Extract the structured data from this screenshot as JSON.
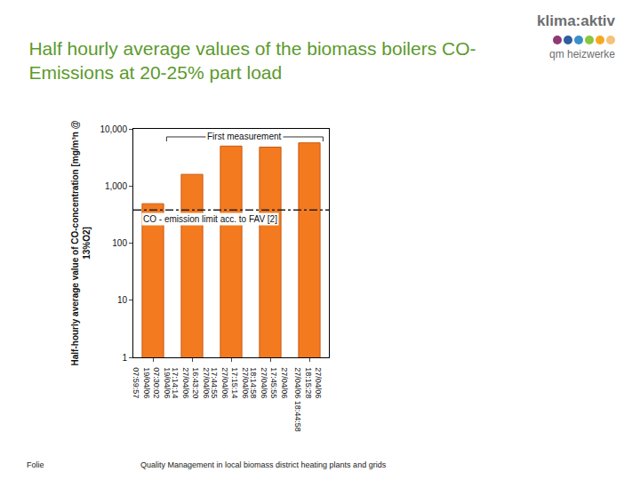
{
  "slide": {
    "title": "Half hourly average values of the biomass boilers CO-\nEmissions at 20-25% part load",
    "logo": {
      "brand": "klima:aktiv",
      "program": "qm heizwerke"
    },
    "footer": {
      "left": "Folie",
      "center": "Quality Management in local biomass district heating plants and grids"
    }
  },
  "chart_data": {
    "type": "bar",
    "categories": [
      "19/04/06\n07:30:02\n19/04/06\n07:59:57",
      "27/04/06\n16:43:20\n27/04/06\n17:14:14",
      "27/04/06\n17:15:14\n27/04/06\n17:44:55",
      "27/04/06\n17:45:55\n27/04/06\n18:14:58",
      "27/04/06\n18:15:28\n27/04/06 18:44:58"
    ],
    "values": [
      490,
      1600,
      5000,
      4800,
      5700
    ],
    "color": "#f47a20",
    "ylim": [
      1,
      10000
    ],
    "yticks": [
      1,
      10,
      100,
      {
        "value": 1000,
        "label": "1,000"
      },
      {
        "value": 10000,
        "label": "10,000"
      }
    ],
    "log": "y",
    "grid": false,
    "y_label": "Half-hourly average value of CO-concentration [mg/m³n @\n13%O2]",
    "reference_line": {
      "value": 380,
      "label": "CO - emission limit acc. to FAV [2]"
    },
    "annotations": [
      {
        "text": "First measurement"
      }
    ]
  }
}
